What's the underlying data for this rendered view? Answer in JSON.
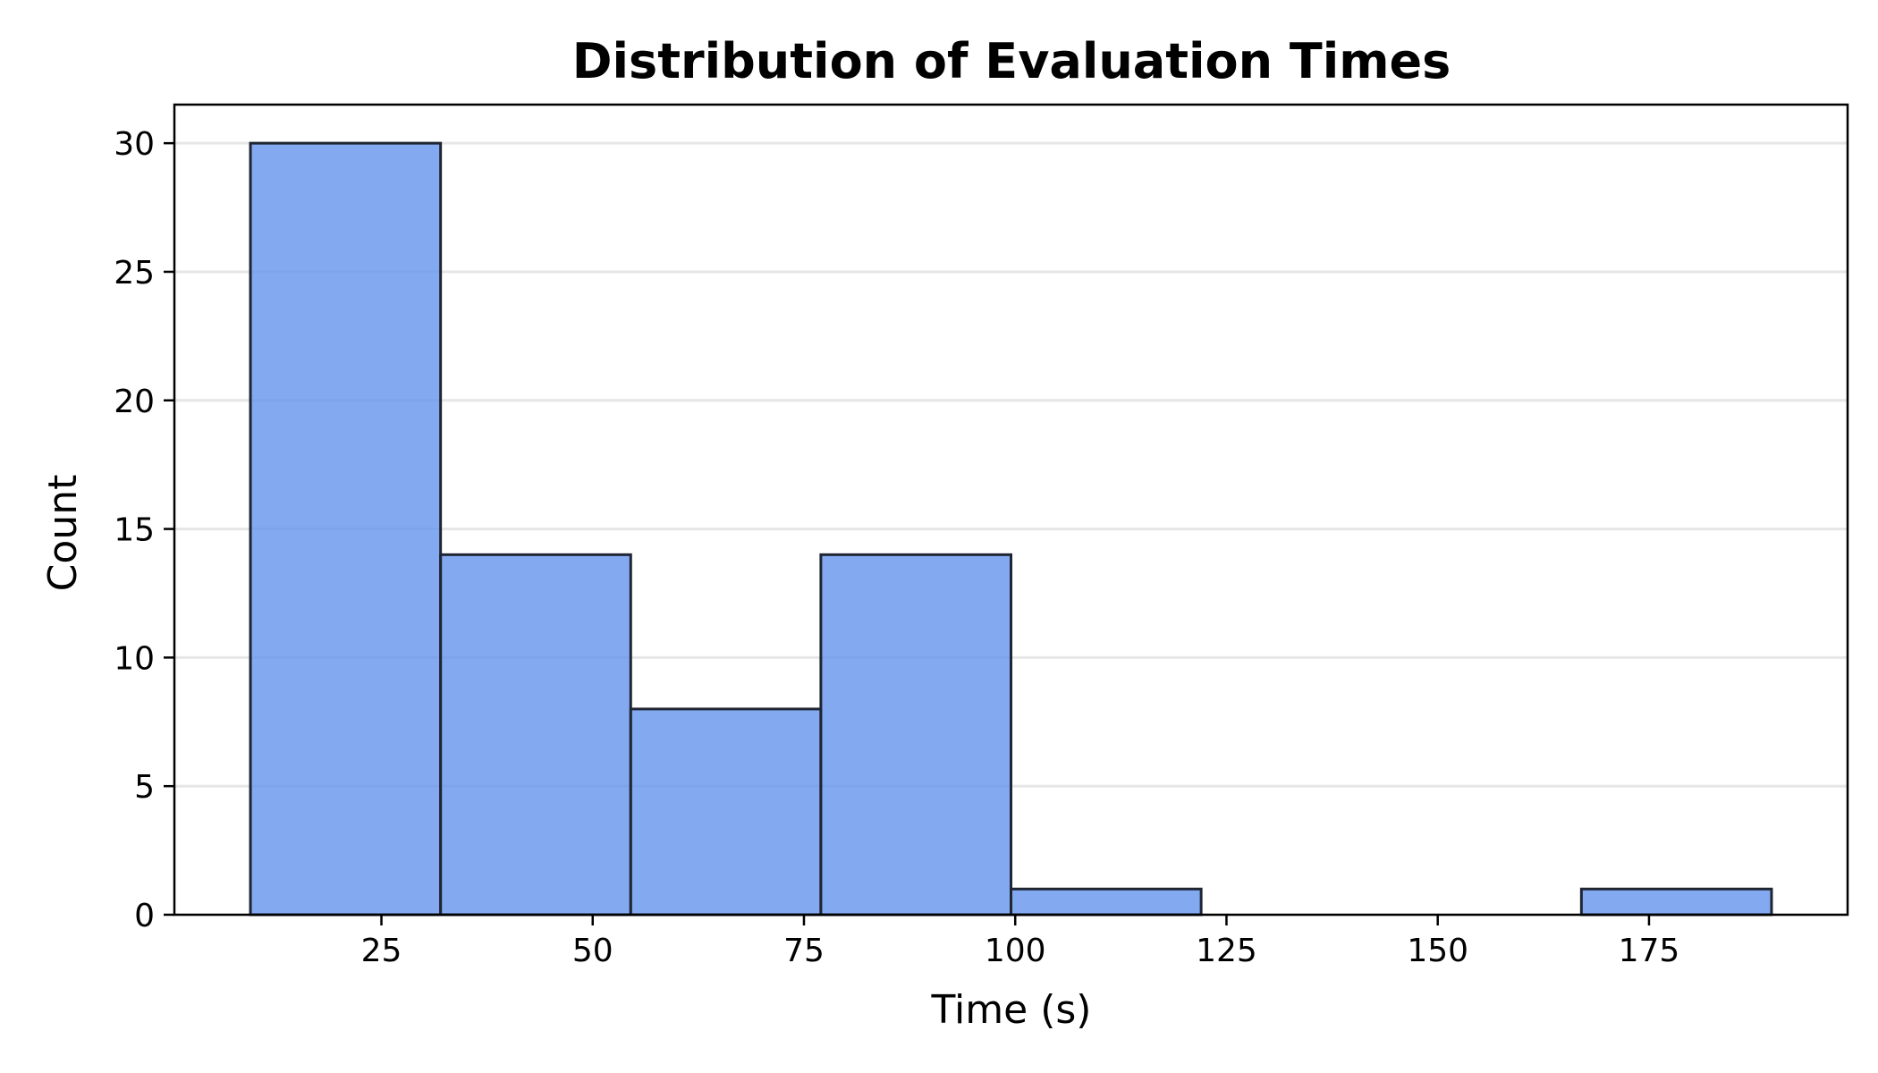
{
  "chart_data": {
    "type": "bar",
    "subtype": "histogram",
    "title": "Distribution of Evaluation Times",
    "xlabel": "Time (s)",
    "ylabel": "Count",
    "bin_edges": [
      9.5,
      32.0,
      54.5,
      77.0,
      99.5,
      122.0,
      144.5,
      167.0,
      189.5
    ],
    "counts": [
      30,
      14,
      8,
      14,
      1,
      0,
      0,
      1
    ],
    "xlim": [
      0.5,
      198.5
    ],
    "ylim": [
      0,
      31.5
    ],
    "xticks": [
      25,
      50,
      75,
      100,
      125,
      150,
      175
    ],
    "yticks": [
      0,
      5,
      10,
      15,
      20,
      25,
      30
    ],
    "grid": "horizontal",
    "legend": "none",
    "colors": {
      "bar_fill": "#6495ED",
      "bar_edge": "#1f2533",
      "grid": "#e6e6e6",
      "axes": "#000000"
    }
  }
}
